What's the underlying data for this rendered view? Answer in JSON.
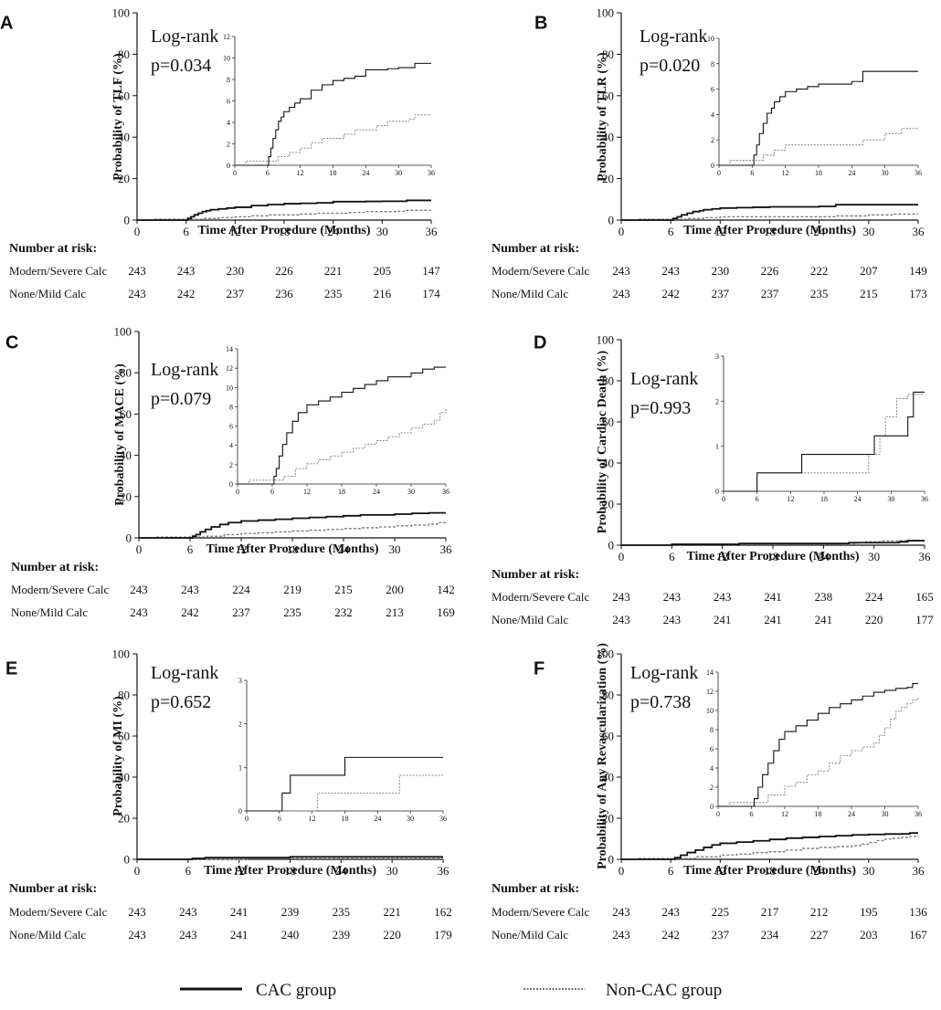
{
  "time_ticks": [
    "0",
    "6",
    "12",
    "18",
    "24",
    "30",
    "36"
  ],
  "y_ticks": [
    "0",
    "20",
    "40",
    "60",
    "80",
    "100"
  ],
  "xlabel": "Time After Procedure (Months)",
  "risk_title": "Number at risk:",
  "legend": {
    "cac_label": "CAC group",
    "noncac_label": "Non-CAC group",
    "cac_color": "#111111",
    "noncac_color": "#777777"
  },
  "chart_data": [
    {
      "type": "line",
      "panel": "A",
      "ylabel": "Probability of TLF (%)",
      "logrank_label": "Log-rank",
      "p_value": "p=0.034",
      "xlim": [
        0,
        36
      ],
      "ylim": [
        0,
        100
      ],
      "inset_ylim": [
        0,
        12
      ],
      "inset_yticks": [
        "0",
        "2",
        "4",
        "6",
        "8",
        "10",
        "12"
      ],
      "inset_xticks": [
        "0",
        "6",
        "12",
        "18",
        "24",
        "30",
        "36"
      ],
      "series": [
        {
          "name": "CAC group",
          "x": [
            0,
            6,
            6.2,
            6.6,
            7,
            7.5,
            8,
            8.5,
            9,
            10,
            11,
            12,
            14,
            16,
            18,
            20,
            22,
            24,
            28,
            30,
            33,
            36
          ],
          "y": [
            0,
            0,
            0.8,
            1.6,
            2.5,
            3.3,
            4.1,
            4.5,
            5.0,
            5.4,
            5.8,
            6.2,
            7.0,
            7.5,
            7.9,
            8.1,
            8.3,
            8.9,
            9.0,
            9.1,
            9.5,
            9.5
          ]
        },
        {
          "name": "Non-CAC group",
          "x": [
            0,
            2,
            6,
            8,
            10,
            12,
            14,
            16,
            18,
            20,
            22,
            24,
            26,
            28,
            30,
            32,
            33,
            36
          ],
          "y": [
            0,
            0.4,
            0.4,
            0.8,
            1.2,
            1.6,
            2.1,
            2.5,
            2.5,
            2.9,
            3.3,
            3.3,
            3.7,
            4.1,
            4.1,
            4.3,
            4.7,
            4.7
          ]
        }
      ],
      "risk_rows": [
        {
          "label": "Modern/Severe Calc",
          "values": [
            "243",
            "243",
            "230",
            "226",
            "221",
            "205",
            "147"
          ]
        },
        {
          "label": "None/Mild Calc",
          "values": [
            "243",
            "242",
            "237",
            "236",
            "235",
            "216",
            "174"
          ]
        }
      ]
    },
    {
      "type": "line",
      "panel": "B",
      "ylabel": "Probability of TLR (%)",
      "logrank_label": "Log-rank",
      "p_value": "p=0.020",
      "xlim": [
        0,
        36
      ],
      "ylim": [
        0,
        100
      ],
      "inset_ylim": [
        0,
        10
      ],
      "inset_yticks": [
        "0",
        "2",
        "4",
        "6",
        "8",
        "10"
      ],
      "inset_xticks": [
        "0",
        "6",
        "12",
        "18",
        "24",
        "30",
        "36"
      ],
      "series": [
        {
          "name": "CAC group",
          "x": [
            0,
            6,
            6.3,
            6.8,
            7.3,
            8,
            8.7,
            9.5,
            10,
            11,
            12,
            14,
            16,
            18,
            24,
            26,
            36
          ],
          "y": [
            0,
            0,
            0.8,
            1.6,
            2.5,
            3.3,
            4.1,
            4.5,
            5.0,
            5.4,
            5.8,
            6.0,
            6.2,
            6.4,
            6.6,
            7.4,
            7.4
          ]
        },
        {
          "name": "Non-CAC group",
          "x": [
            0,
            2,
            8,
            10,
            12,
            24,
            26,
            30,
            33,
            36
          ],
          "y": [
            0,
            0.4,
            0.8,
            1.2,
            1.6,
            1.6,
            2.0,
            2.5,
            2.9,
            2.9
          ]
        }
      ],
      "risk_rows": [
        {
          "label": "Modern/Severe Calc",
          "values": [
            "243",
            "243",
            "230",
            "226",
            "222",
            "207",
            "149"
          ]
        },
        {
          "label": "None/Mild Calc",
          "values": [
            "243",
            "242",
            "237",
            "237",
            "235",
            "215",
            "173"
          ]
        }
      ]
    },
    {
      "type": "line",
      "panel": "C",
      "ylabel": "Probability of MACE (%)",
      "logrank_label": "Log-rank",
      "p_value": "p=0.079",
      "xlim": [
        0,
        36
      ],
      "ylim": [
        0,
        100
      ],
      "inset_ylim": [
        0,
        14
      ],
      "inset_yticks": [
        "0",
        "2",
        "4",
        "6",
        "8",
        "10",
        "12",
        "14"
      ],
      "inset_xticks": [
        "0",
        "6",
        "12",
        "18",
        "24",
        "30",
        "36"
      ],
      "series": [
        {
          "name": "CAC group",
          "x": [
            0,
            6,
            6.3,
            6.7,
            7.2,
            7.8,
            8.5,
            9.5,
            10.5,
            12,
            14,
            16,
            18,
            20,
            22,
            24,
            26,
            28,
            30,
            32,
            34,
            36
          ],
          "y": [
            0,
            0,
            0.8,
            1.6,
            2.9,
            4.1,
            5.3,
            6.5,
            7.4,
            8.2,
            8.6,
            9.0,
            9.5,
            9.9,
            10.3,
            10.7,
            11.1,
            11.1,
            11.5,
            11.9,
            12.1,
            12.1
          ]
        },
        {
          "name": "Non-CAC group",
          "x": [
            0,
            2,
            6,
            8,
            10,
            12,
            14,
            16,
            18,
            20,
            22,
            24,
            26,
            28,
            30,
            32,
            34,
            35,
            36
          ],
          "y": [
            0,
            0.4,
            0.4,
            0.8,
            1.6,
            2.1,
            2.5,
            2.9,
            3.3,
            3.7,
            4.1,
            4.5,
            4.9,
            5.3,
            5.8,
            6.2,
            6.6,
            7.4,
            7.8
          ]
        }
      ],
      "risk_rows": [
        {
          "label": "Modern/Severe Calc",
          "values": [
            "243",
            "243",
            "224",
            "219",
            "215",
            "200",
            "142"
          ]
        },
        {
          "label": "None/Mild Calc",
          "values": [
            "243",
            "242",
            "237",
            "235",
            "232",
            "213",
            "169"
          ]
        }
      ]
    },
    {
      "type": "line",
      "panel": "D",
      "ylabel": "Probability of Cardiac Death (%)",
      "logrank_label": "Log-rank",
      "p_value": "p=0.993",
      "xlim": [
        0,
        36
      ],
      "ylim": [
        0,
        100
      ],
      "inset_ylim": [
        0,
        3
      ],
      "inset_yticks": [
        "0",
        "1",
        "2",
        "3"
      ],
      "inset_xticks": [
        "0",
        "6",
        "12",
        "18",
        "24",
        "30",
        "36"
      ],
      "series": [
        {
          "name": "CAC group",
          "x": [
            0,
            6,
            14,
            22,
            27,
            30,
            33,
            34,
            36
          ],
          "y": [
            0,
            0.41,
            0.82,
            0.82,
            1.23,
            1.23,
            1.65,
            2.2,
            2.2
          ]
        },
        {
          "name": "Non-CAC group",
          "x": [
            0,
            6,
            25,
            26,
            28,
            29,
            31,
            33,
            36
          ],
          "y": [
            0,
            0.41,
            0.41,
            0.82,
            1.23,
            1.65,
            2.06,
            2.15,
            2.15
          ]
        }
      ],
      "risk_rows": [
        {
          "label": "Modern/Severe Calc",
          "values": [
            "243",
            "243",
            "243",
            "241",
            "238",
            "224",
            "165"
          ]
        },
        {
          "label": "None/Mild Calc",
          "values": [
            "243",
            "243",
            "241",
            "241",
            "241",
            "220",
            "177"
          ]
        }
      ]
    },
    {
      "type": "line",
      "panel": "E",
      "ylabel": "Probability of MI (%)",
      "logrank_label": "Log-rank",
      "p_value": "p=0.652",
      "xlim": [
        0,
        36
      ],
      "ylim": [
        0,
        100
      ],
      "inset_ylim": [
        0,
        3
      ],
      "inset_yticks": [
        "0",
        "1",
        "2",
        "3"
      ],
      "inset_xticks": [
        "0",
        "6",
        "12",
        "18",
        "24",
        "30",
        "36"
      ],
      "series": [
        {
          "name": "CAC group",
          "x": [
            0,
            6.5,
            8,
            18,
            36
          ],
          "y": [
            0,
            0.41,
            0.82,
            1.23,
            1.23
          ]
        },
        {
          "name": "Non-CAC group",
          "x": [
            0,
            13,
            28,
            36
          ],
          "y": [
            0,
            0.41,
            0.82,
            0.82
          ]
        }
      ],
      "risk_rows": [
        {
          "label": "Modern/Severe Calc",
          "values": [
            "243",
            "243",
            "241",
            "239",
            "235",
            "221",
            "162"
          ]
        },
        {
          "label": "None/Mild Calc",
          "values": [
            "243",
            "243",
            "241",
            "240",
            "239",
            "220",
            "179"
          ]
        }
      ]
    },
    {
      "type": "line",
      "panel": "F",
      "ylabel": "Probability of Any Revascularization (%)",
      "logrank_label": "Log-rank",
      "p_value": "p=0.738",
      "xlim": [
        0,
        36
      ],
      "ylim": [
        0,
        100
      ],
      "inset_ylim": [
        0,
        14
      ],
      "inset_yticks": [
        "0",
        "2",
        "4",
        "6",
        "8",
        "10",
        "12",
        "14"
      ],
      "inset_xticks": [
        "0",
        "6",
        "12",
        "18",
        "24",
        "30",
        "36"
      ],
      "series": [
        {
          "name": "CAC group",
          "x": [
            0,
            6,
            6.5,
            7.2,
            8,
            9,
            10,
            11,
            12,
            14,
            16,
            18,
            20,
            22,
            24,
            26,
            28,
            30,
            32,
            34,
            35,
            36
          ],
          "y": [
            0,
            0,
            0.8,
            2.0,
            3.3,
            4.5,
            5.8,
            7.0,
            7.8,
            8.4,
            9.0,
            9.7,
            10.3,
            10.7,
            11.1,
            11.5,
            11.9,
            12.1,
            12.3,
            12.4,
            12.8,
            12.8
          ]
        },
        {
          "name": "Non-CAC group",
          "x": [
            0,
            2,
            6,
            9,
            12,
            14,
            16,
            18,
            20,
            22,
            24,
            26,
            28,
            29,
            30,
            31,
            32,
            33,
            34,
            35,
            36
          ],
          "y": [
            0,
            0.4,
            0.4,
            1.2,
            2.1,
            2.5,
            3.3,
            3.7,
            4.5,
            5.3,
            5.8,
            6.2,
            6.6,
            7.4,
            8.2,
            9.1,
            9.9,
            10.3,
            10.7,
            11.1,
            11.5
          ]
        }
      ],
      "risk_rows": [
        {
          "label": "Modern/Severe Calc",
          "values": [
            "243",
            "243",
            "225",
            "217",
            "212",
            "195",
            "136"
          ]
        },
        {
          "label": "None/Mild Calc",
          "values": [
            "243",
            "242",
            "237",
            "234",
            "227",
            "203",
            "167"
          ]
        }
      ]
    }
  ]
}
